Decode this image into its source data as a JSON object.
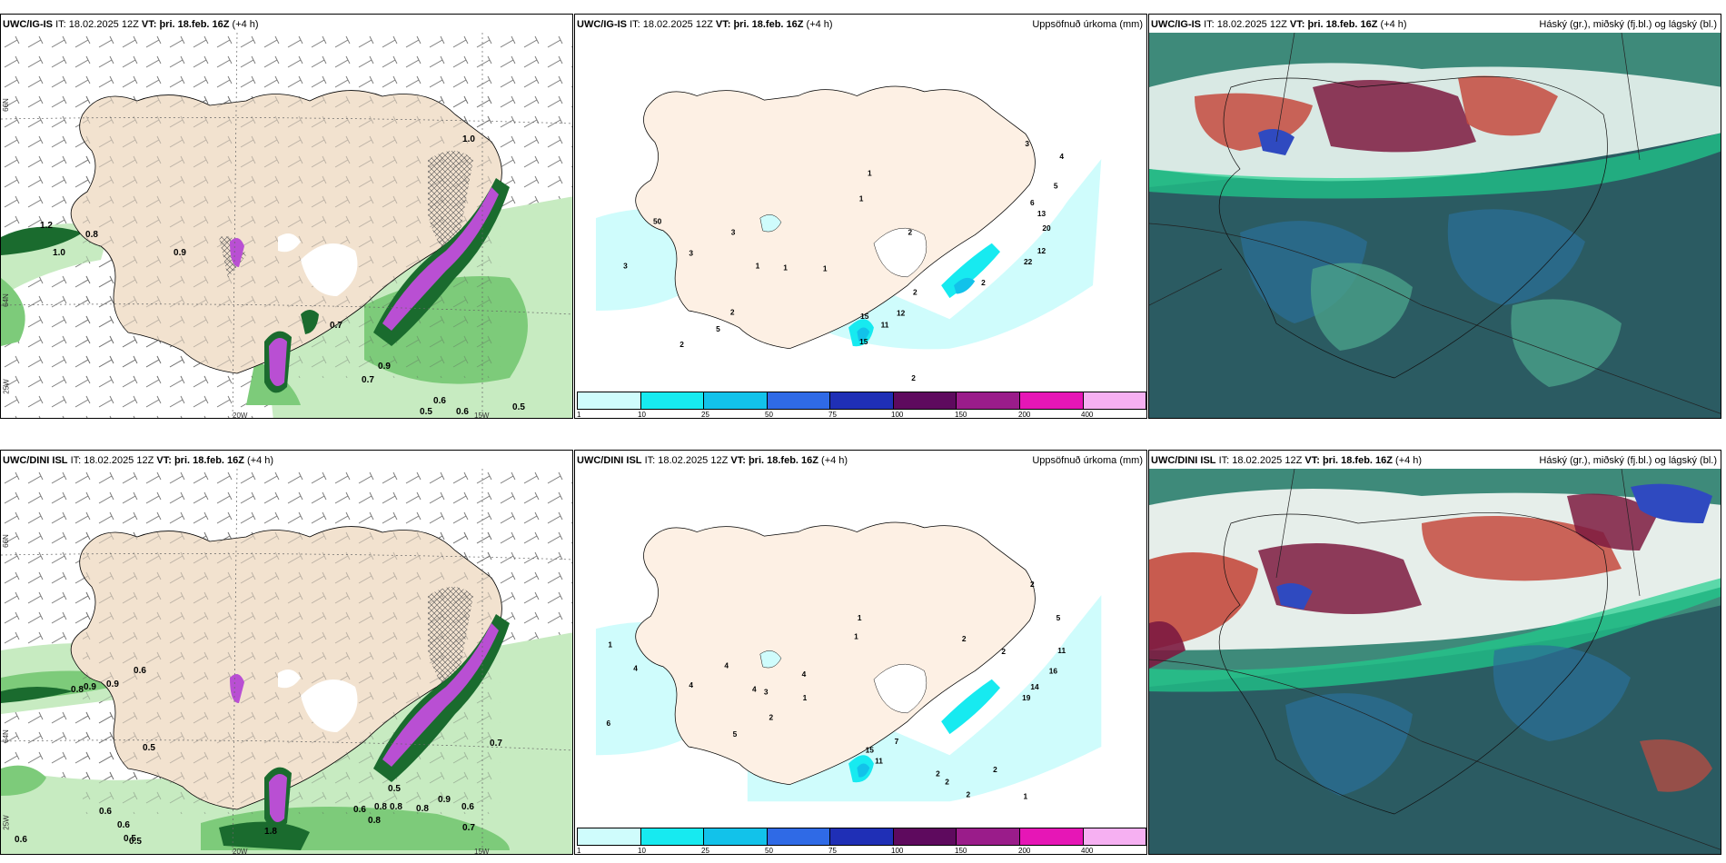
{
  "panels": [
    {
      "model": "UWC/IG-IS",
      "it_label": "IT:",
      "it": "18.02.2025 12Z",
      "vt_label": "VT:",
      "vt": "þri. 18.feb. 16Z",
      "lead": "(+4 h)",
      "right_title": ""
    },
    {
      "model": "UWC/IG-IS",
      "it_label": "IT:",
      "it": "18.02.2025 12Z",
      "vt_label": "VT:",
      "vt": "þri. 18.feb. 16Z",
      "lead": "(+4 h)",
      "right_title": "Uppsöfnuð úrkoma (mm)"
    },
    {
      "model": "UWC/IG-IS",
      "it_label": "IT:",
      "it": "18.02.2025 12Z",
      "vt_label": "VT:",
      "vt": "þri. 18.feb. 16Z",
      "lead": "(+4 h)",
      "right_title": "Háský (gr.), miðský (fj.bl.) og lágský (bl.)"
    },
    {
      "model": "UWC/DINI ISL",
      "it_label": "IT:",
      "it": "18.02.2025 12Z",
      "vt_label": "VT:",
      "vt": "þri. 18.feb. 16Z",
      "lead": "(+4 h)",
      "right_title": ""
    },
    {
      "model": "UWC/DINI ISL",
      "it_label": "IT:",
      "it": "18.02.2025 12Z",
      "vt_label": "VT:",
      "vt": "þri. 18.feb. 16Z",
      "lead": "(+4 h)",
      "right_title": "Uppsöfnuð úrkoma (mm)"
    },
    {
      "model": "UWC/DINI ISL",
      "it_label": "IT:",
      "it": "18.02.2025 12Z",
      "vt_label": "VT:",
      "vt": "þri. 18.feb. 16Z",
      "lead": "(+4 h)",
      "right_title": "Háský (gr.), miðský (fj.bl.) og lágský (bl.)"
    }
  ],
  "wind_map": {
    "lon_labels": [
      "20W",
      "15W"
    ],
    "lat_labels": [
      "66N",
      "64N",
      "25W"
    ],
    "top_values": [
      "0.5",
      "0.6",
      "0.6",
      "0.5",
      "0.7",
      "0.9",
      "1.0",
      "0.8",
      "0.7",
      "0.9",
      "1.2",
      "1.0"
    ],
    "bottom_values": [
      "0.6",
      "0.6",
      "0.5",
      "0.5",
      "0.6",
      "0.6",
      "0.8",
      "0.8",
      "0.8",
      "0.9",
      "0.6",
      "0.7",
      "1.8",
      "0.5",
      "0.7",
      "0.8",
      "0.9",
      "0.6",
      "0.9",
      "0.8",
      "0.5"
    ]
  },
  "precip_map": {
    "lat_labels": [
      "66N",
      "64N"
    ],
    "top_values": [
      "1",
      "1",
      "3",
      "4",
      "5",
      "6",
      "13",
      "20",
      "12",
      "22",
      "2",
      "2",
      "12",
      "15",
      "11",
      "15",
      "3",
      "3",
      "3",
      "2",
      "2",
      "5",
      "2",
      "1",
      "1",
      "1",
      "2",
      "50"
    ],
    "bottom_values": [
      "1",
      "2",
      "5",
      "11",
      "16",
      "14",
      "19",
      "2",
      "7",
      "15",
      "11",
      "2",
      "2",
      "2",
      "2",
      "1",
      "4",
      "6",
      "4",
      "4",
      "4",
      "1",
      "3",
      "4",
      "2",
      "1",
      "5",
      "2",
      "1"
    ],
    "legend_ticks": [
      "1",
      "10",
      "25",
      "50",
      "75",
      "100",
      "150",
      "200",
      "400"
    ],
    "legend_colors": [
      "#cffcfc",
      "#17eaf0",
      "#12c2ea",
      "#2f6ae6",
      "#1f2fb6",
      "#5e0a5e",
      "#9a1c8a",
      "#e616b6",
      "#f6b0f2"
    ]
  },
  "colors": {
    "land": "#f2e2cf",
    "sea": "#ffffff",
    "wind_green_light": "#c7ebc1",
    "wind_green_mid": "#7dcb7a",
    "wind_green_dark": "#1a6b2e",
    "precip_purple": "#b94fd3",
    "cloud_teal": "#3e8a7a",
    "cloud_dark": "#2b5b62",
    "cloud_red": "#c44a3e",
    "cloud_maroon": "#7c1a40"
  }
}
